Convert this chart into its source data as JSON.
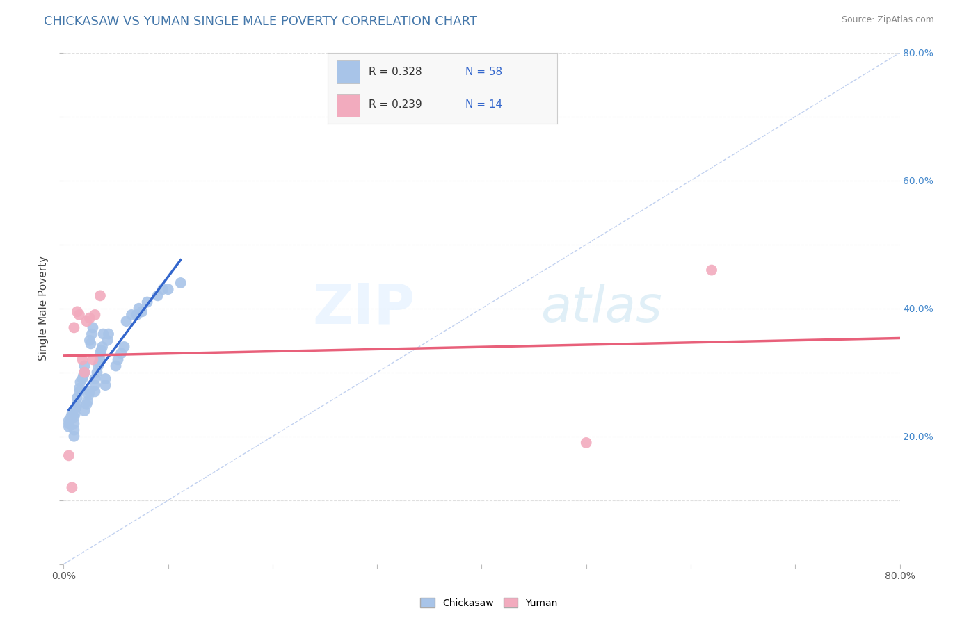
{
  "title": "CHICKASAW VS YUMAN SINGLE MALE POVERTY CORRELATION CHART",
  "source": "Source: ZipAtlas.com",
  "ylabel": "Single Male Poverty",
  "xlim": [
    0.0,
    0.8
  ],
  "ylim": [
    0.0,
    0.8
  ],
  "xtick_vals": [
    0.0,
    0.1,
    0.2,
    0.3,
    0.4,
    0.5,
    0.6,
    0.7,
    0.8
  ],
  "ytick_vals": [
    0.0,
    0.1,
    0.2,
    0.3,
    0.4,
    0.5,
    0.6,
    0.7,
    0.8
  ],
  "right_ytick_vals": [
    0.2,
    0.4,
    0.6,
    0.8
  ],
  "right_ytick_labels": [
    "20.0%",
    "40.0%",
    "60.0%",
    "80.0%"
  ],
  "chickasaw_color": "#A8C4E8",
  "yuman_color": "#F2ABBE",
  "chickasaw_line_color": "#3366CC",
  "yuman_line_color": "#E8607A",
  "diagonal_color": "#BBCCEE",
  "r_chickasaw": 0.328,
  "n_chickasaw": 58,
  "r_yuman": 0.239,
  "n_yuman": 14,
  "watermark_zip": "ZIP",
  "watermark_atlas": "atlas",
  "background_color": "#FFFFFF",
  "grid_color": "#DDDDDD",
  "chickasaw_x": [
    0.005,
    0.005,
    0.005,
    0.007,
    0.008,
    0.01,
    0.01,
    0.01,
    0.01,
    0.011,
    0.012,
    0.013,
    0.013,
    0.015,
    0.015,
    0.016,
    0.018,
    0.019,
    0.02,
    0.02,
    0.02,
    0.022,
    0.023,
    0.024,
    0.025,
    0.025,
    0.026,
    0.027,
    0.028,
    0.03,
    0.03,
    0.03,
    0.032,
    0.033,
    0.034,
    0.035,
    0.035,
    0.036,
    0.037,
    0.038,
    0.04,
    0.04,
    0.042,
    0.043,
    0.05,
    0.052,
    0.055,
    0.058,
    0.06,
    0.065,
    0.07,
    0.072,
    0.075,
    0.08,
    0.09,
    0.095,
    0.1,
    0.112
  ],
  "chickasaw_y": [
    0.215,
    0.22,
    0.225,
    0.23,
    0.235,
    0.2,
    0.21,
    0.22,
    0.23,
    0.235,
    0.245,
    0.25,
    0.26,
    0.27,
    0.275,
    0.285,
    0.29,
    0.295,
    0.24,
    0.3,
    0.31,
    0.25,
    0.255,
    0.265,
    0.27,
    0.35,
    0.345,
    0.36,
    0.37,
    0.27,
    0.28,
    0.29,
    0.3,
    0.31,
    0.315,
    0.32,
    0.33,
    0.335,
    0.34,
    0.36,
    0.28,
    0.29,
    0.35,
    0.36,
    0.31,
    0.32,
    0.33,
    0.34,
    0.38,
    0.39,
    0.39,
    0.4,
    0.395,
    0.41,
    0.42,
    0.43,
    0.43,
    0.44
  ],
  "yuman_x": [
    0.005,
    0.008,
    0.01,
    0.013,
    0.015,
    0.018,
    0.02,
    0.022,
    0.025,
    0.028,
    0.03,
    0.035,
    0.5,
    0.62
  ],
  "yuman_y": [
    0.17,
    0.12,
    0.37,
    0.395,
    0.39,
    0.32,
    0.3,
    0.38,
    0.385,
    0.32,
    0.39,
    0.42,
    0.19,
    0.46
  ],
  "legend_box_color": "#F8F8F8",
  "legend_border_color": "#CCCCCC"
}
